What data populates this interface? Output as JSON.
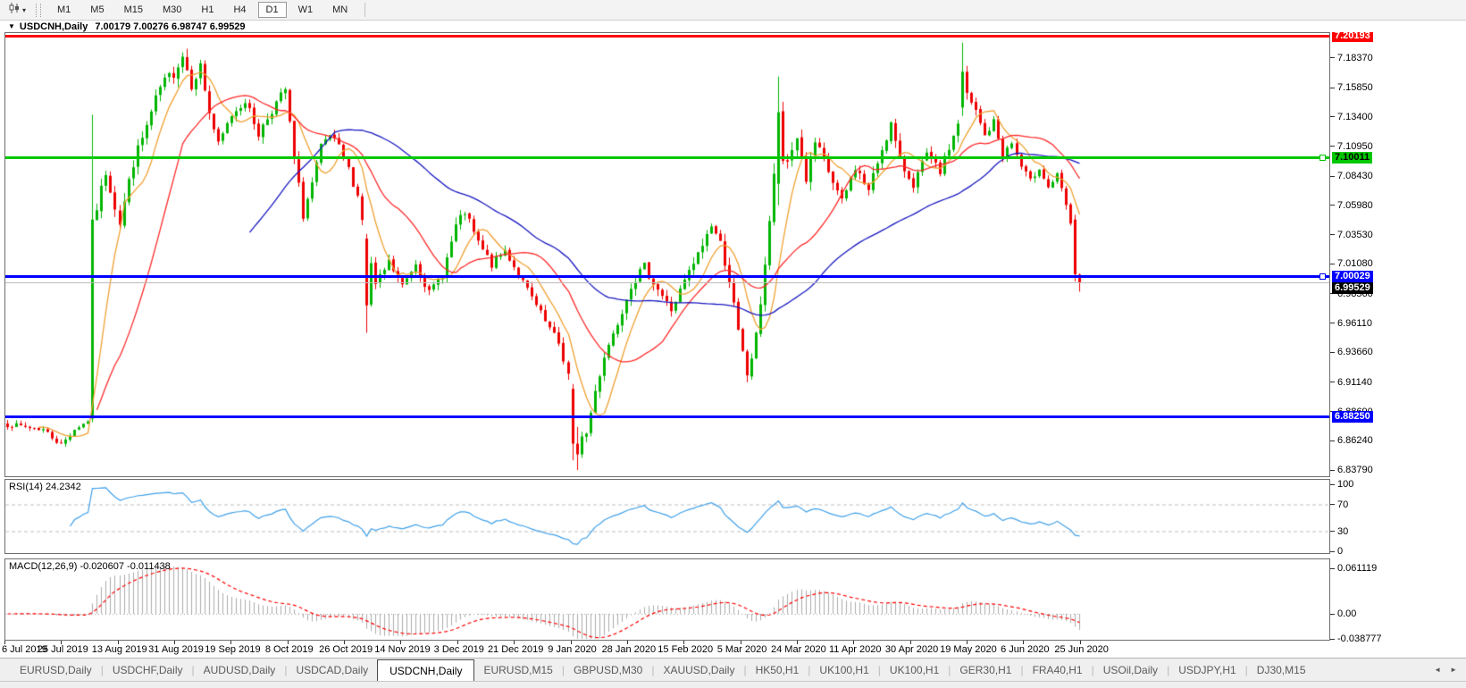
{
  "toolbar": {
    "chart_tool_caret": "▾",
    "periods": [
      "M1",
      "M5",
      "M15",
      "M30",
      "H1",
      "H4",
      "D1",
      "W1",
      "MN"
    ],
    "selected_period": "D1"
  },
  "header": {
    "caret": "▼",
    "symbol_period": "USDCNH,Daily",
    "ohlc": "7.00179 7.00276 6.98747 6.99529"
  },
  "tabs": {
    "items": [
      "EURUSD,Daily",
      "USDCHF,Daily",
      "AUDUSD,Daily",
      "USDCAD,Daily",
      "USDCNH,Daily",
      "EURUSD,M15",
      "GBPUSD,M30",
      "XAUUSD,Daily",
      "HK50,H1",
      "UK100,H1",
      "UK100,H1",
      "GER30,H1",
      "FRA40,H1",
      "USOil,Daily",
      "USDJPY,H1",
      "DJ30,M15"
    ],
    "active_index": 4,
    "scroll_left_icon": "◄",
    "scroll_right_icon": "►"
  },
  "chart_data": {
    "type": "candlestick",
    "symbol": "USDCNH",
    "timeframe": "Daily",
    "current_bar": {
      "open": "7.00179",
      "high": "7.00276",
      "low": "6.98747",
      "close": "6.99529"
    },
    "colors": {
      "bull": "#00b400",
      "bear": "#ee0000",
      "ma_fast": "#efa030",
      "ma_mid": "#ff2a2a",
      "ma_slow": "#1818c0",
      "rsi_line": "#3fa0e8",
      "macd_hist": "#ababab",
      "macd_signal": "#ff0000",
      "grid_dash": "#bdbdbd",
      "current_price_line": "#bbbbbb"
    },
    "y_ticks": [
      "7.20820",
      "7.18370",
      "7.15850",
      "7.13400",
      "7.10950",
      "7.08430",
      "7.05980",
      "7.03530",
      "7.01080",
      "6.98560",
      "6.96110",
      "6.93660",
      "6.91140",
      "6.88690",
      "6.86240",
      "6.83790"
    ],
    "y_range": {
      "top": 7.2082,
      "bottom": 6.8379
    },
    "x_labels": [
      "6 Jul 2019",
      "25 Jul 2019",
      "13 Aug 2019",
      "31 Aug 2019",
      "19 Sep 2019",
      "8 Oct 2019",
      "26 Oct 2019",
      "14 Nov 2019",
      "3 Dec 2019",
      "21 Dec 2019",
      "9 Jan 2020",
      "28 Jan 2020",
      "15 Feb 2020",
      "5 Mar 2020",
      "24 Mar 2020",
      "11 Apr 2020",
      "30 Apr 2020",
      "19 May 2020",
      "6 Jun 2020",
      "25 Jun 2020"
    ],
    "bar_count": 240,
    "seed": 7,
    "waypoints": [
      [
        0,
        6.876,
        0.004
      ],
      [
        8,
        6.872,
        0.004
      ],
      [
        12,
        6.859,
        0.004
      ],
      [
        15,
        6.872,
        0.003
      ],
      [
        18,
        6.879,
        0.002
      ],
      [
        20,
        7.058,
        0.008
      ],
      [
        22,
        7.088,
        0.008
      ],
      [
        25,
        7.046,
        0.01
      ],
      [
        28,
        7.096,
        0.009
      ],
      [
        31,
        7.126,
        0.01
      ],
      [
        34,
        7.158,
        0.009
      ],
      [
        37,
        7.172,
        0.01
      ],
      [
        39,
        7.186,
        0.009
      ],
      [
        41,
        7.162,
        0.009
      ],
      [
        43,
        7.177,
        0.007
      ],
      [
        45,
        7.138,
        0.009
      ],
      [
        47,
        7.11,
        0.007
      ],
      [
        50,
        7.136,
        0.007
      ],
      [
        53,
        7.148,
        0.006
      ],
      [
        56,
        7.12,
        0.007
      ],
      [
        59,
        7.14,
        0.007
      ],
      [
        62,
        7.157,
        0.007
      ],
      [
        64,
        7.098,
        0.009
      ],
      [
        66,
        7.052,
        0.008
      ],
      [
        68,
        7.078,
        0.007
      ],
      [
        70,
        7.108,
        0.007
      ],
      [
        72,
        7.118,
        0.006
      ],
      [
        74,
        7.108,
        0.006
      ],
      [
        76,
        7.09,
        0.006
      ],
      [
        78,
        7.068,
        0.007
      ],
      [
        82,
        6.992,
        0.007
      ],
      [
        85,
        7.012,
        0.007
      ],
      [
        88,
        6.992,
        0.006
      ],
      [
        91,
        7.012,
        0.006
      ],
      [
        94,
        6.986,
        0.006
      ],
      [
        97,
        7.002,
        0.006
      ],
      [
        100,
        7.042,
        0.008
      ],
      [
        102,
        7.054,
        0.006
      ],
      [
        105,
        7.028,
        0.007
      ],
      [
        108,
        7.01,
        0.006
      ],
      [
        111,
        7.022,
        0.005
      ],
      [
        114,
        7.002,
        0.005
      ],
      [
        117,
        6.982,
        0.006
      ],
      [
        120,
        6.962,
        0.006
      ],
      [
        123,
        6.944,
        0.006
      ],
      [
        125,
        6.918,
        0.008
      ],
      [
        129,
        6.868,
        0.006
      ],
      [
        131,
        6.904,
        0.008
      ],
      [
        133,
        6.934,
        0.007
      ],
      [
        136,
        6.962,
        0.007
      ],
      [
        139,
        6.994,
        0.008
      ],
      [
        142,
        7.008,
        0.007
      ],
      [
        145,
        6.99,
        0.007
      ],
      [
        148,
        6.972,
        0.006
      ],
      [
        151,
        6.996,
        0.007
      ],
      [
        154,
        7.018,
        0.008
      ],
      [
        157,
        7.044,
        0.008
      ],
      [
        159,
        7.028,
        0.007
      ],
      [
        161,
        6.998,
        0.009
      ],
      [
        163,
        6.952,
        0.01
      ],
      [
        165,
        6.918,
        0.009
      ],
      [
        167,
        6.948,
        0.011
      ],
      [
        169,
        7.012,
        0.012
      ],
      [
        171,
        7.082,
        0.012
      ],
      [
        174,
        7.096,
        0.011
      ],
      [
        176,
        7.118,
        0.01
      ],
      [
        178,
        7.082,
        0.01
      ],
      [
        180,
        7.112,
        0.009
      ],
      [
        183,
        7.088,
        0.008
      ],
      [
        186,
        7.062,
        0.008
      ],
      [
        189,
        7.092,
        0.007
      ],
      [
        192,
        7.072,
        0.007
      ],
      [
        195,
        7.108,
        0.008
      ],
      [
        197,
        7.128,
        0.008
      ],
      [
        199,
        7.096,
        0.008
      ],
      [
        202,
        7.078,
        0.007
      ],
      [
        205,
        7.102,
        0.007
      ],
      [
        208,
        7.088,
        0.006
      ],
      [
        211,
        7.118,
        0.007
      ],
      [
        214,
        7.152,
        0.008
      ],
      [
        216,
        7.138,
        0.008
      ],
      [
        218,
        7.118,
        0.007
      ],
      [
        220,
        7.13,
        0.006
      ],
      [
        222,
        7.102,
        0.006
      ],
      [
        224,
        7.112,
        0.005
      ],
      [
        226,
        7.092,
        0.006
      ],
      [
        228,
        7.08,
        0.005
      ],
      [
        230,
        7.092,
        0.005
      ],
      [
        232,
        7.075,
        0.005
      ],
      [
        234,
        7.085,
        0.004
      ],
      [
        236,
        7.06,
        0.006
      ],
      [
        237,
        7.042,
        0.006
      ],
      [
        239,
        6.9953,
        0.004
      ]
    ],
    "special_bars": [
      {
        "i": 19,
        "o": 6.881,
        "h": 7.136,
        "l": 6.878,
        "c": 7.048
      },
      {
        "i": 80,
        "o": 7.032,
        "h": 7.036,
        "l": 6.953,
        "c": 6.976
      },
      {
        "i": 126,
        "o": 6.906,
        "h": 6.91,
        "l": 6.846,
        "c": 6.86
      },
      {
        "i": 127,
        "o": 6.86,
        "h": 6.874,
        "l": 6.8379,
        "c": 6.851
      },
      {
        "i": 128,
        "o": 6.851,
        "h": 6.87,
        "l": 6.848,
        "c": 6.866
      },
      {
        "i": 172,
        "o": 7.078,
        "h": 7.168,
        "l": 7.06,
        "c": 7.138
      },
      {
        "i": 213,
        "o": 7.142,
        "h": 7.1965,
        "l": 7.135,
        "c": 7.172
      },
      {
        "i": 238,
        "o": 7.048,
        "h": 7.052,
        "l": 6.996,
        "c": 7.002
      },
      {
        "i": 239,
        "o": 7.0018,
        "h": 7.0028,
        "l": 6.9875,
        "c": 6.9953
      }
    ],
    "moving_averages": [
      {
        "period": 8,
        "color": "#efa030"
      },
      {
        "period": 21,
        "color": "#ff2a2a"
      },
      {
        "period": 55,
        "color": "#1818c0"
      }
    ],
    "horizontal_lines": [
      {
        "name": "resistance-line",
        "price": 7.20193,
        "label": "7.20193",
        "color": "#ff0000",
        "badge_bg": "#ff0000",
        "badge_fg": "#ffffff",
        "thickness": 3,
        "handle": false
      },
      {
        "name": "pivot-line",
        "price": 7.10011,
        "label": "7.10011",
        "color": "#00c800",
        "badge_bg": "#00c800",
        "badge_fg": "#000000",
        "thickness": 3,
        "handle": true
      },
      {
        "name": "support-line-1",
        "price": 7.00029,
        "label": "7.00029",
        "color": "#0000ff",
        "badge_bg": "#0000ff",
        "badge_fg": "#ffffff",
        "thickness": 3,
        "handle": true
      },
      {
        "name": "support-line-2",
        "price": 6.8825,
        "label": "6.88250",
        "color": "#0000ff",
        "badge_bg": "#0000ff",
        "badge_fg": "#ffffff",
        "thickness": 3,
        "handle": false
      }
    ],
    "current_price": {
      "label": "6.99529",
      "price": 6.99529,
      "badge_bg": "#000000",
      "badge_fg": "#ffffff"
    },
    "rsi": {
      "label": "RSI(14) 24.2342",
      "period": 14,
      "value": 24.2342,
      "levels": [
        "100",
        "70",
        "30",
        "0"
      ],
      "upper": 70,
      "lower": 30
    },
    "macd": {
      "label": "MACD(12,26,9) -0.020607 -0.011438",
      "fast": 12,
      "slow": 26,
      "signal": 9,
      "value": -0.020607,
      "signal_value": -0.011438,
      "y_ticks": [
        "0.061119",
        "0.00",
        "-0.038777"
      ]
    }
  }
}
